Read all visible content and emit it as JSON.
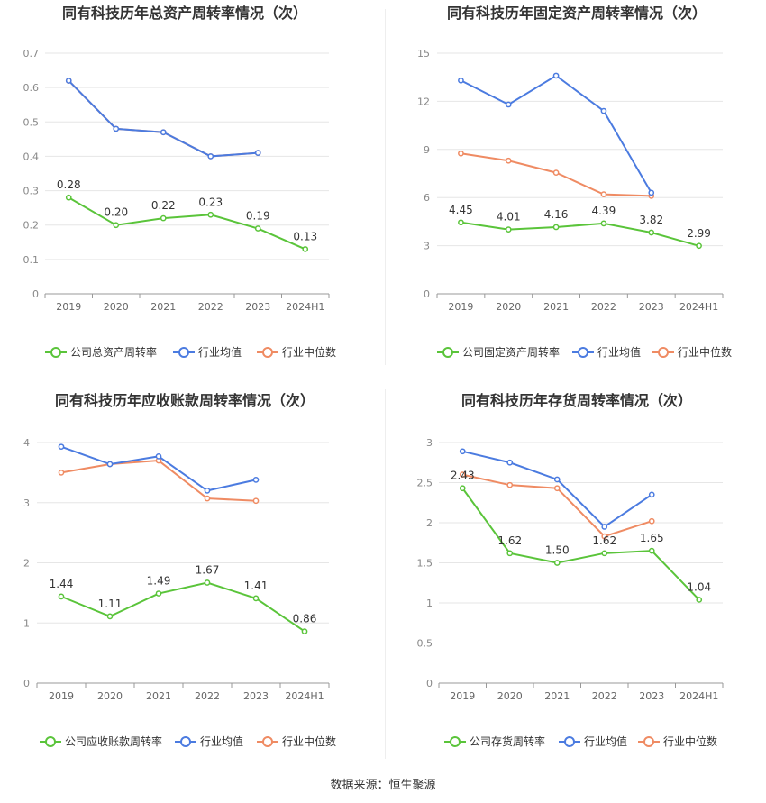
{
  "source": "数据来源：恒生聚源",
  "colors": {
    "company": "#5ac43a",
    "avg": "#4b7be0",
    "median": "#ef8b63",
    "grid": "#e6e6e6",
    "axis": "#999999"
  },
  "chart_data": [
    {
      "type": "line",
      "title": "同有科技历年总资产周转率情况（次）",
      "categories": [
        "2019",
        "2020",
        "2021",
        "2022",
        "2023",
        "2024H1"
      ],
      "ylim": [
        0,
        0.7
      ],
      "yticks": [
        "0",
        "0.1",
        "0.2",
        "0.3",
        "0.4",
        "0.5",
        "0.6",
        "0.7"
      ],
      "series": [
        {
          "name": "公司总资产周转率",
          "color": "#5ac43a",
          "values": [
            0.28,
            0.2,
            0.22,
            0.23,
            0.19,
            0.13
          ],
          "labels": [
            "0.28",
            "0.20",
            "0.22",
            "0.23",
            "0.19",
            "0.13"
          ]
        },
        {
          "name": "行业均值",
          "color": "#4b7be0",
          "values": [
            0.62,
            0.48,
            0.47,
            0.4,
            0.41,
            null
          ]
        },
        {
          "name": "行业中位数",
          "color": "#ef8b63",
          "values": [
            0.62,
            0.48,
            0.47,
            0.4,
            0.41,
            null
          ]
        }
      ],
      "legend_position": "bottom"
    },
    {
      "type": "line",
      "title": "同有科技历年固定资产周转率情况（次）",
      "categories": [
        "2019",
        "2020",
        "2021",
        "2022",
        "2023",
        "2024H1"
      ],
      "ylim": [
        0,
        15
      ],
      "yticks": [
        "0",
        "3",
        "6",
        "9",
        "12",
        "15"
      ],
      "series": [
        {
          "name": "公司固定资产周转率",
          "color": "#5ac43a",
          "values": [
            4.45,
            4.01,
            4.16,
            4.39,
            3.82,
            2.99
          ],
          "labels": [
            "4.45",
            "4.01",
            "4.16",
            "4.39",
            "3.82",
            "2.99"
          ]
        },
        {
          "name": "行业均值",
          "color": "#4b7be0",
          "values": [
            13.3,
            11.8,
            13.6,
            11.4,
            6.3,
            null
          ]
        },
        {
          "name": "行业中位数",
          "color": "#ef8b63",
          "values": [
            8.75,
            8.3,
            7.55,
            6.2,
            6.1,
            null
          ]
        }
      ],
      "legend_position": "bottom"
    },
    {
      "type": "line",
      "title": "同有科技历年应收账款周转率情况（次）",
      "categories": [
        "2019",
        "2020",
        "2021",
        "2022",
        "2023",
        "2024H1"
      ],
      "ylim": [
        0,
        4
      ],
      "yticks": [
        "0",
        "1",
        "2",
        "3",
        "4"
      ],
      "series": [
        {
          "name": "公司应收账款周转率",
          "color": "#5ac43a",
          "values": [
            1.44,
            1.11,
            1.49,
            1.67,
            1.41,
            0.86
          ],
          "labels": [
            "1.44",
            "1.11",
            "1.49",
            "1.67",
            "1.41",
            "0.86"
          ]
        },
        {
          "name": "行业均值",
          "color": "#4b7be0",
          "values": [
            3.93,
            3.64,
            3.77,
            3.2,
            3.38,
            null
          ]
        },
        {
          "name": "行业中位数",
          "color": "#ef8b63",
          "values": [
            3.5,
            3.64,
            3.7,
            3.07,
            3.03,
            null
          ]
        }
      ],
      "legend_position": "bottom"
    },
    {
      "type": "line",
      "title": "同有科技历年存货周转率情况（次）",
      "categories": [
        "2019",
        "2020",
        "2021",
        "2022",
        "2023",
        "2024H1"
      ],
      "ylim": [
        0,
        3
      ],
      "yticks": [
        "0",
        "0.5",
        "1",
        "1.5",
        "2",
        "2.5",
        "3"
      ],
      "series": [
        {
          "name": "公司存货周转率",
          "color": "#5ac43a",
          "values": [
            2.43,
            1.62,
            1.5,
            1.62,
            1.65,
            1.04
          ],
          "labels": [
            "2.43",
            "1.62",
            "1.50",
            "1.62",
            "1.65",
            "1.04"
          ]
        },
        {
          "name": "行业均值",
          "color": "#4b7be0",
          "values": [
            2.89,
            2.75,
            2.54,
            1.95,
            2.35,
            null
          ]
        },
        {
          "name": "行业中位数",
          "color": "#ef8b63",
          "values": [
            2.6,
            2.47,
            2.43,
            1.83,
            2.02,
            null
          ]
        }
      ],
      "legend_position": "bottom"
    }
  ]
}
